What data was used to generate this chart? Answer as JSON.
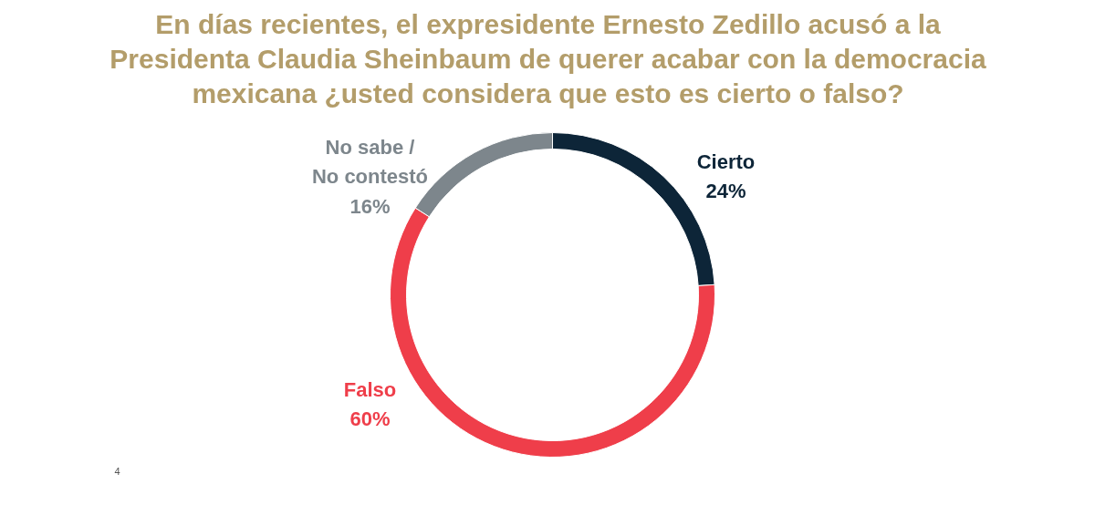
{
  "chart_data": {
    "type": "donut",
    "title": "En días recientes, el expresidente Ernesto Zedillo acusó a la Presidenta Claudia Sheinbaum de querer acabar con la democracia mexicana ¿usted considera que esto es cierto o falso?",
    "categories": [
      "Cierto",
      "Falso",
      "No sabe / No contestó"
    ],
    "values": [
      24,
      60,
      16
    ],
    "value_labels": [
      "24%",
      "60%",
      "16%"
    ],
    "colors": [
      "#0d2538",
      "#ef3e4a",
      "#7d868c"
    ],
    "annotations": [
      "4"
    ]
  }
}
